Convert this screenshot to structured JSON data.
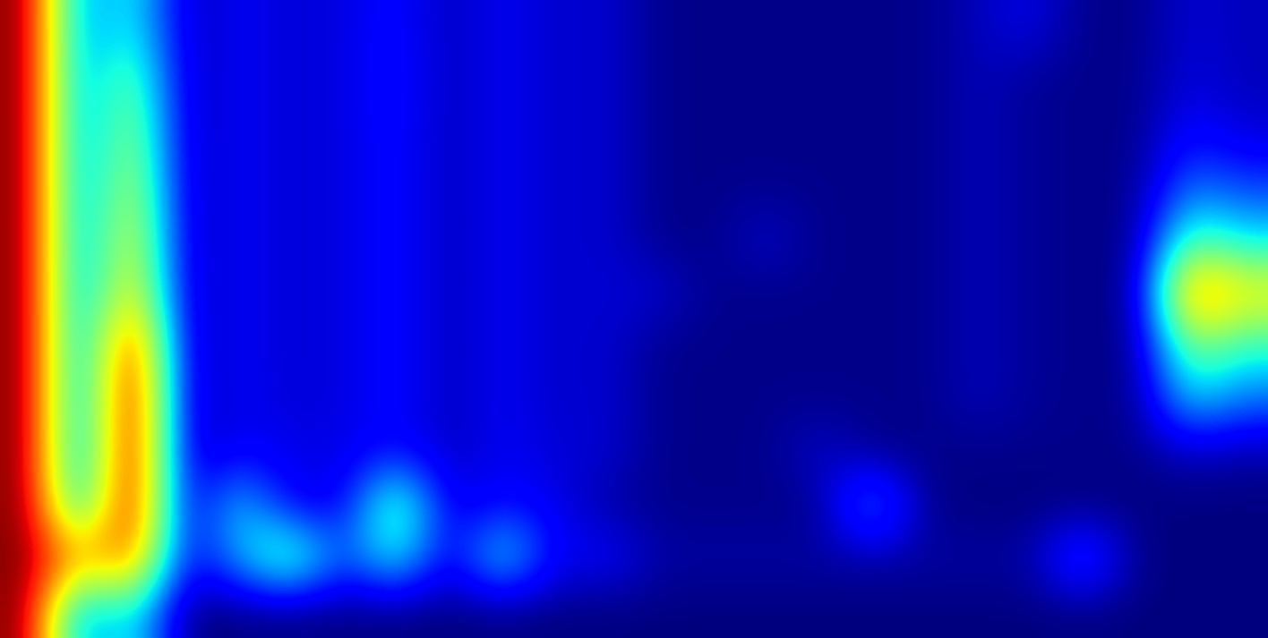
{
  "chart_data": {
    "type": "heatmap",
    "color": "jet",
    "tick_labels": false,
    "cells": [
      [
        9.5,
        2.5,
        4.0,
        0.8,
        1.3,
        1.0,
        1.1,
        1.5,
        0.8,
        1.3,
        0.9,
        1.0,
        0.4,
        0.4,
        0.4,
        0.4,
        0.4,
        0.4,
        0.8,
        1.2,
        0.4,
        0.4,
        1.0,
        0.8
      ],
      [
        9.5,
        2.5,
        5.0,
        0.8,
        1.3,
        1.0,
        1.1,
        1.6,
        0.8,
        1.3,
        0.9,
        1.0,
        0.4,
        0.4,
        0.4,
        0.4,
        0.4,
        0.4,
        0.8,
        0.5,
        0.4,
        0.4,
        1.1,
        0.8
      ],
      [
        9.5,
        2.5,
        5.5,
        0.8,
        1.3,
        1.0,
        1.1,
        1.5,
        0.8,
        1.3,
        0.9,
        1.0,
        0.4,
        0.4,
        0.4,
        0.4,
        0.4,
        0.4,
        0.8,
        0.5,
        0.4,
        0.4,
        1.5,
        1.0
      ],
      [
        9.5,
        2.5,
        6.0,
        0.8,
        1.3,
        1.0,
        1.1,
        1.5,
        0.8,
        1.3,
        0.9,
        1.0,
        0.4,
        0.4,
        0.4,
        0.4,
        0.4,
        0.4,
        0.8,
        0.5,
        0.4,
        0.4,
        2.5,
        2.0
      ],
      [
        9.5,
        2.5,
        6.5,
        0.8,
        1.3,
        1.0,
        1.1,
        1.5,
        0.8,
        1.3,
        0.9,
        1.0,
        0.4,
        0.4,
        1.0,
        0.4,
        0.4,
        0.4,
        0.8,
        0.5,
        0.4,
        0.4,
        4.5,
        3.5
      ],
      [
        9.5,
        2.5,
        7.0,
        0.8,
        1.3,
        1.0,
        1.1,
        1.5,
        0.8,
        1.3,
        0.9,
        1.0,
        1.0,
        0.4,
        0.4,
        0.4,
        0.4,
        0.4,
        0.8,
        0.5,
        0.4,
        0.4,
        8.0,
        6.5
      ],
      [
        9.5,
        2.5,
        9.0,
        0.8,
        1.3,
        1.0,
        1.1,
        1.5,
        0.8,
        1.3,
        0.9,
        1.0,
        0.4,
        0.4,
        0.4,
        0.4,
        0.4,
        0.4,
        0.8,
        0.5,
        0.4,
        0.4,
        5.0,
        4.0
      ],
      [
        9.5,
        2.5,
        9.5,
        0.8,
        1.3,
        1.0,
        1.1,
        1.5,
        0.8,
        1.3,
        0.9,
        1.0,
        0.4,
        0.4,
        0.4,
        0.4,
        0.4,
        0.4,
        0.8,
        0.5,
        0.4,
        0.4,
        3.5,
        2.5
      ],
      [
        9.5,
        2.5,
        9.5,
        0.8,
        1.3,
        1.2,
        1.1,
        1.5,
        0.8,
        1.3,
        1.0,
        1.0,
        0.4,
        0.4,
        0.4,
        1.0,
        0.4,
        0.4,
        0.4,
        0.4,
        0.4,
        0.4,
        0.8,
        0.6
      ],
      [
        9.5,
        3.0,
        9.5,
        0.8,
        3.5,
        1.2,
        1.2,
        5.0,
        1.0,
        1.5,
        1.2,
        0.6,
        0.4,
        0.4,
        0.4,
        0.4,
        3.0,
        0.4,
        0.3,
        0.3,
        0.3,
        0.3,
        0.3,
        0.3
      ],
      [
        9.5,
        7.0,
        8.0,
        1.2,
        3.0,
        5.0,
        2.0,
        4.0,
        1.0,
        4.0,
        1.2,
        1.5,
        0.6,
        0.6,
        0.6,
        0.6,
        0.6,
        0.6,
        0.6,
        0.6,
        2.5,
        0.4,
        0.3,
        0.3
      ],
      [
        9.5,
        2.5,
        4.0,
        0.3,
        0.3,
        0.3,
        0.3,
        0.3,
        0.3,
        0.3,
        0.3,
        0.3,
        0.3,
        0.3,
        0.3,
        0.3,
        0.3,
        0.3,
        0.3,
        0.3,
        0.3,
        0.3,
        0.3,
        0.3
      ]
    ]
  }
}
